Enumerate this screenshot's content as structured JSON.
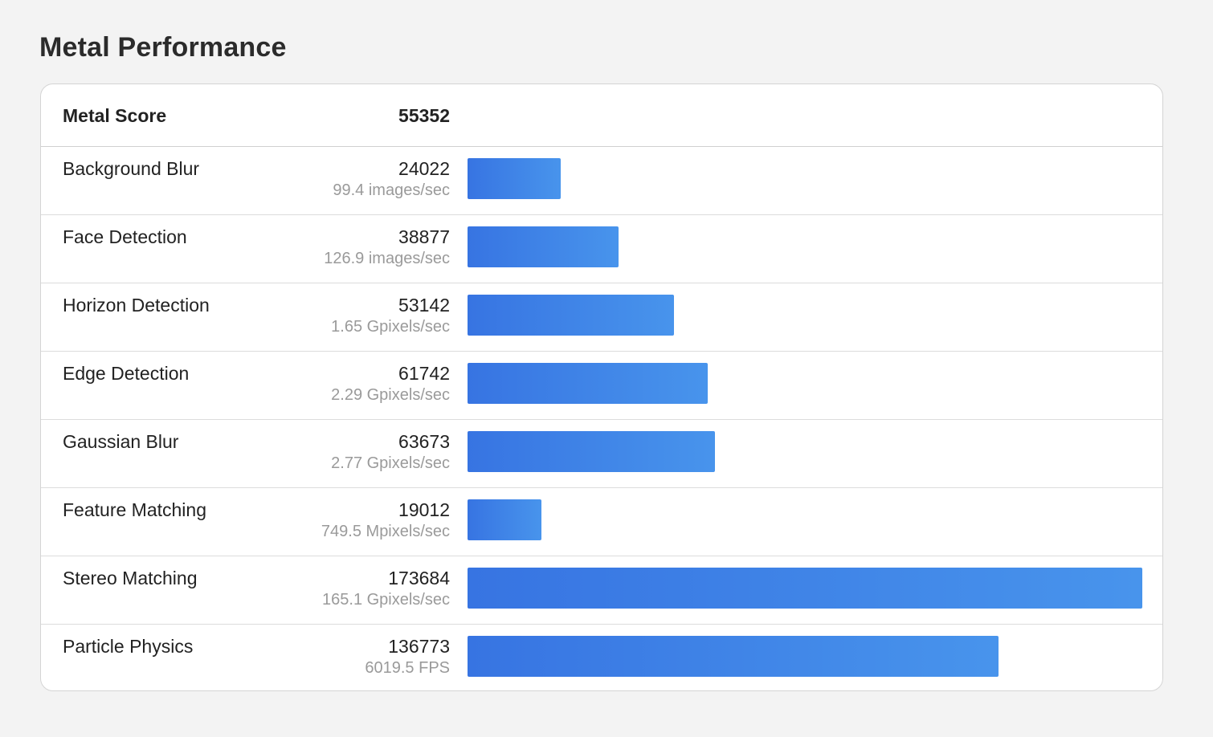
{
  "page": {
    "title": "Metal Performance"
  },
  "summary": {
    "label": "Metal Score",
    "value": "55352"
  },
  "colors": {
    "bar_start": "#3774e2",
    "bar_end": "#4894ec",
    "background": "#f3f3f3"
  },
  "chart_data": {
    "type": "bar",
    "orientation": "horizontal",
    "max_value": 173684,
    "grid": false,
    "legend": "none",
    "categories": [
      "Background Blur",
      "Face Detection",
      "Horizon Detection",
      "Edge Detection",
      "Gaussian Blur",
      "Feature Matching",
      "Stereo Matching",
      "Particle Physics"
    ],
    "values": [
      24022,
      38877,
      53142,
      61742,
      63673,
      19012,
      173684,
      136773
    ],
    "rows": [
      {
        "name": "Background Blur",
        "score": "24022",
        "value": 24022,
        "rate": "99.4 images/sec"
      },
      {
        "name": "Face Detection",
        "score": "38877",
        "value": 38877,
        "rate": "126.9 images/sec"
      },
      {
        "name": "Horizon Detection",
        "score": "53142",
        "value": 53142,
        "rate": "1.65 Gpixels/sec"
      },
      {
        "name": "Edge Detection",
        "score": "61742",
        "value": 61742,
        "rate": "2.29 Gpixels/sec"
      },
      {
        "name": "Gaussian Blur",
        "score": "63673",
        "value": 63673,
        "rate": "2.77 Gpixels/sec"
      },
      {
        "name": "Feature Matching",
        "score": "19012",
        "value": 19012,
        "rate": "749.5 Mpixels/sec"
      },
      {
        "name": "Stereo Matching",
        "score": "173684",
        "value": 173684,
        "rate": "165.1 Gpixels/sec"
      },
      {
        "name": "Particle Physics",
        "score": "136773",
        "value": 136773,
        "rate": "6019.5 FPS"
      }
    ]
  }
}
